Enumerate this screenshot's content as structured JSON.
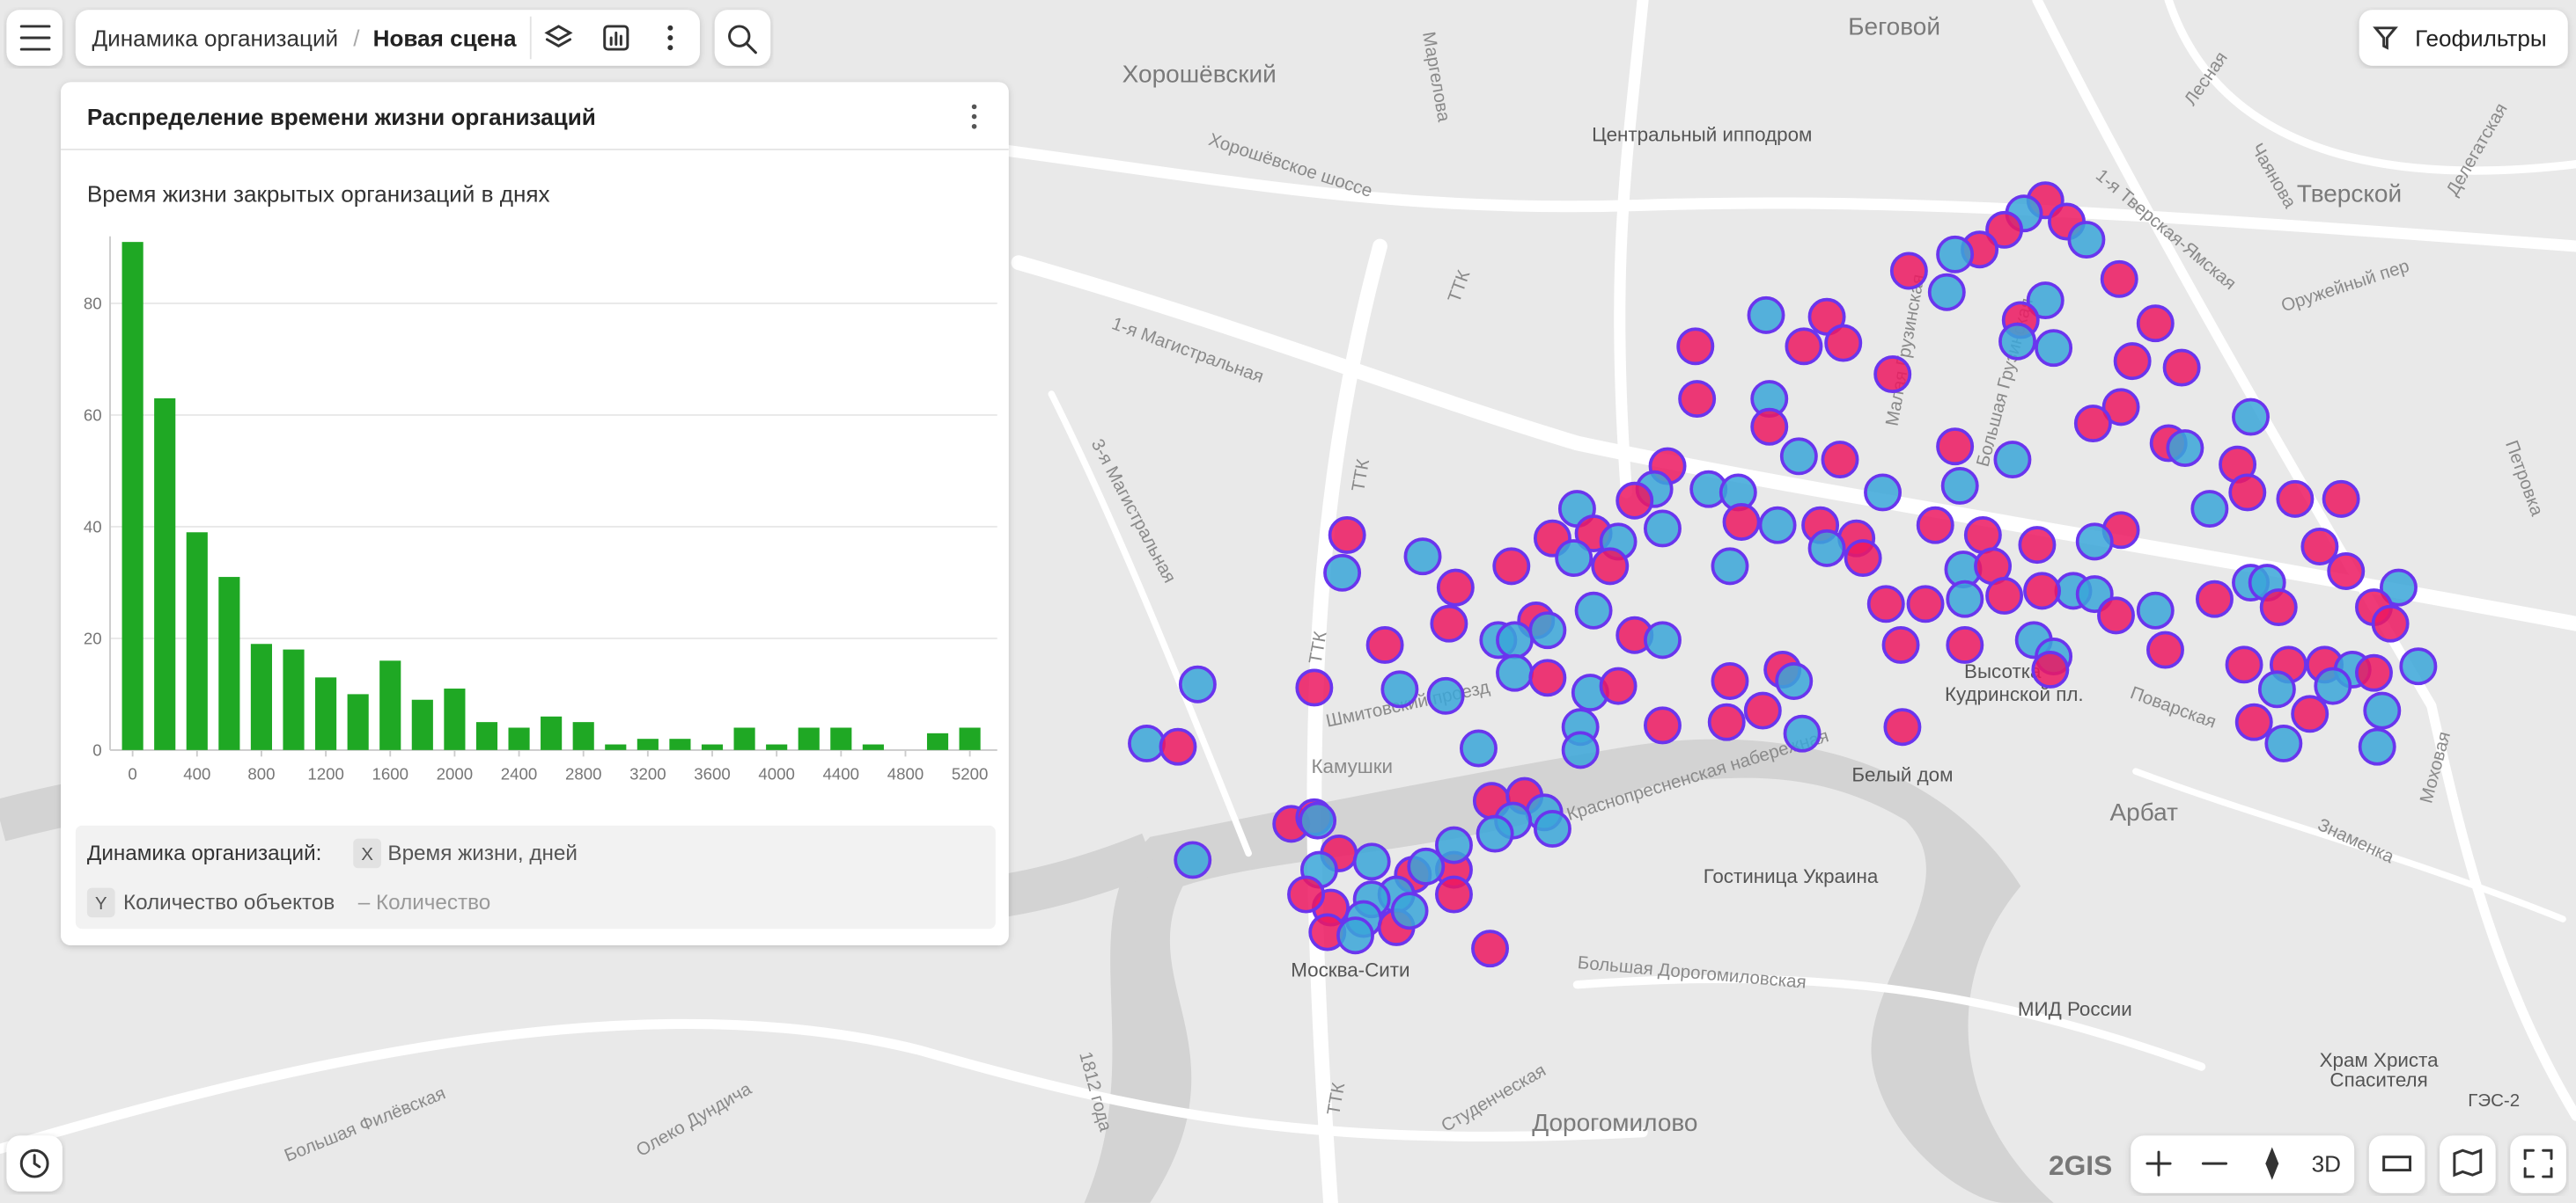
{
  "toolbar": {
    "breadcrumb": [
      "Динамика организаций",
      "Новая сцена"
    ],
    "geofilters": "Геофильтры"
  },
  "panel": {
    "title": "Распределение времени жизни организаций",
    "chart": {
      "type": "histogram",
      "subtitle": "Время жизни закрытых организаций в днях",
      "color": "#1fa824",
      "bins": [
        -100,
        100,
        300,
        500,
        700,
        900,
        1100,
        1300,
        1500,
        1700,
        1900,
        2100,
        2300,
        2500,
        2700,
        2900,
        3100,
        3300,
        3500,
        3700,
        3900,
        4100,
        4300,
        4500,
        4700,
        4900,
        5100,
        5300
      ],
      "values": [
        91,
        63,
        39,
        31,
        19,
        18,
        13,
        10,
        16,
        9,
        11,
        5,
        4,
        6,
        5,
        1,
        2,
        2,
        1,
        4,
        1,
        4,
        4,
        1,
        0,
        3,
        4
      ],
      "xlim": [
        -140,
        5370
      ],
      "xticks": [
        0,
        400,
        800,
        1200,
        1600,
        2000,
        2400,
        2800,
        3200,
        3600,
        4000,
        4400,
        4800,
        5200
      ],
      "ylim": [
        0,
        92
      ],
      "yticks": [
        0,
        20,
        40,
        60,
        80
      ],
      "grid": true
    },
    "legend": {
      "source": "Динамика организаций:",
      "x_key": "X",
      "x_name": "Время жизни, дней",
      "y_key": "Y",
      "y_name": "Количество объектов",
      "y_agg": "– Количество"
    }
  },
  "map": {
    "labels": [
      "Хорошёвский",
      "Беговой",
      "Центральный ипподром",
      "Хорошёвское шоссе",
      "1-я Магистральная",
      "3-я Магистральная",
      "ТТК",
      "ТТК",
      "ТТК",
      "ТТК",
      "Тверской",
      "Оружейный пер",
      "Камушки",
      "Шмитовский проезд",
      "Краснопресненская набережная",
      "Белый дом",
      "Высотка",
      "Кудринской пл.",
      "Арбат",
      "Гостиница Украина",
      "Москва-Сити",
      "МИД России",
      "Большая Дорогомиловская",
      "Дорогомилово",
      "Студенческая",
      "Храм Христа",
      "Спасителя",
      "Поварская",
      "Знаменка",
      "Моховая",
      "Большая Филёвская",
      "Олеко Дундича",
      "1812 года",
      "Маргелова",
      "Лесная",
      "Чаянова",
      "Делегатская",
      "Петровка",
      "ГЭС-2",
      "1-я Тверская-Ямская",
      "Большая Грузинская",
      "Малая Грузинская"
    ],
    "brand": "2GIS",
    "view_3d": "3D"
  }
}
